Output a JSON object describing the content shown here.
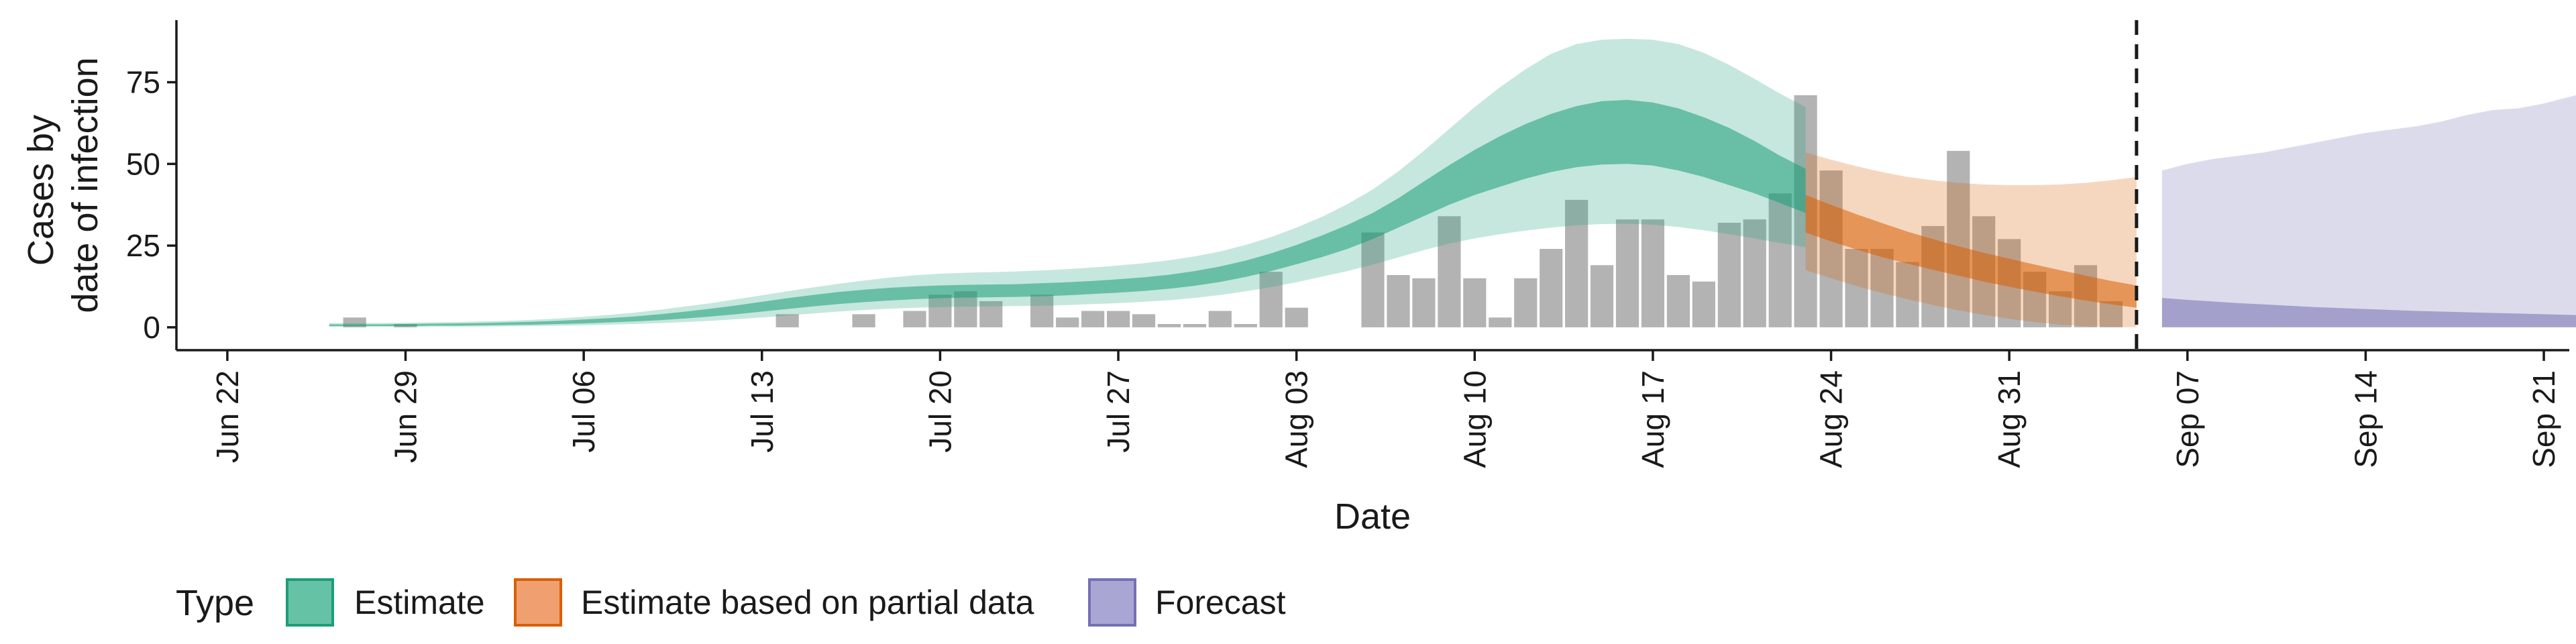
{
  "chart_data": {
    "type": "area",
    "title": "",
    "xlabel": "Date",
    "ylabel_lines": [
      "Cases by",
      "date of infection"
    ],
    "x_range": [
      "2020-06-20",
      "2020-09-22"
    ],
    "ylim": [
      -7,
      94
    ],
    "grid": false,
    "x_ticks": [
      {
        "date": "2020-06-22",
        "label": "Jun 22"
      },
      {
        "date": "2020-06-29",
        "label": "Jun 29"
      },
      {
        "date": "2020-07-06",
        "label": "Jul 06"
      },
      {
        "date": "2020-07-13",
        "label": "Jul 13"
      },
      {
        "date": "2020-07-20",
        "label": "Jul 20"
      },
      {
        "date": "2020-07-27",
        "label": "Jul 27"
      },
      {
        "date": "2020-08-03",
        "label": "Aug 03"
      },
      {
        "date": "2020-08-10",
        "label": "Aug 10"
      },
      {
        "date": "2020-08-17",
        "label": "Aug 17"
      },
      {
        "date": "2020-08-24",
        "label": "Aug 24"
      },
      {
        "date": "2020-08-31",
        "label": "Aug 31"
      },
      {
        "date": "2020-09-07",
        "label": "Sep 07"
      },
      {
        "date": "2020-09-14",
        "label": "Sep 14"
      },
      {
        "date": "2020-09-21",
        "label": "Sep 21"
      }
    ],
    "y_ticks": [
      {
        "value": 0,
        "label": "0"
      },
      {
        "value": 25,
        "label": "25"
      },
      {
        "value": 50,
        "label": "50"
      },
      {
        "value": 75,
        "label": "75"
      }
    ],
    "vline_date": "2020-09-05",
    "legend": {
      "title": "Type",
      "position": "bottom",
      "entries": [
        {
          "label": "Estimate",
          "fill": "#66c2a5",
          "stroke": "#1b9e77"
        },
        {
          "label": "Estimate based on partial data",
          "fill": "#f0a070",
          "stroke": "#d95f02"
        },
        {
          "label": "Forecast",
          "fill": "#a9a6d4",
          "stroke": "#7570b3"
        }
      ]
    },
    "observed_cases": {
      "start": "2020-06-26",
      "values": [
        0,
        3,
        0,
        1,
        0,
        0,
        0,
        0,
        0,
        0,
        0,
        0,
        0,
        0,
        0,
        0,
        0,
        0,
        4,
        0,
        0,
        4,
        0,
        5,
        10,
        11,
        8,
        0,
        10,
        3,
        5,
        5,
        4,
        1,
        1,
        5,
        1,
        17,
        6,
        0,
        0,
        29,
        16,
        15,
        34,
        15,
        3,
        15,
        24,
        39,
        19,
        33,
        33,
        16,
        14,
        32,
        33,
        41,
        71,
        48,
        24,
        24,
        20,
        31,
        54,
        34,
        27,
        17,
        11,
        19,
        8
      ]
    },
    "series": [
      {
        "name": "Estimate",
        "color": "#1b9e77",
        "start": "2020-06-26",
        "upper90": [
          1.3,
          1.3,
          1.3,
          1.4,
          1.5,
          1.6,
          1.8,
          2.0,
          2.3,
          2.7,
          3.2,
          3.8,
          4.5,
          5.4,
          6.4,
          7.4,
          8.6,
          9.8,
          11.0,
          12.2,
          13.3,
          14.3,
          15.2,
          15.9,
          16.4,
          16.7,
          16.9,
          17.1,
          17.4,
          17.8,
          18.3,
          18.9,
          19.6,
          20.5,
          21.7,
          23.2,
          25.2,
          27.6,
          30.5,
          33.8,
          37.7,
          42.2,
          47.7,
          54.0,
          60.7,
          67.4,
          73.5,
          79.0,
          83.7,
          86.7,
          88.0,
          88.3,
          88.0,
          86.7,
          84.0,
          80.3,
          76.0,
          71.5,
          67.4
        ],
        "upper50": [
          0.9,
          0.9,
          0.9,
          1.0,
          1.1,
          1.2,
          1.3,
          1.5,
          1.7,
          2.0,
          2.4,
          2.8,
          3.3,
          4.0,
          4.8,
          5.7,
          6.7,
          7.8,
          8.9,
          9.9,
          10.8,
          11.5,
          12.1,
          12.5,
          12.8,
          13.0,
          13.1,
          13.2,
          13.5,
          13.8,
          14.2,
          14.7,
          15.3,
          16.1,
          17.2,
          18.6,
          20.4,
          22.6,
          25.2,
          28.1,
          31.3,
          35.0,
          39.5,
          44.6,
          49.6,
          54.3,
          58.5,
          62.2,
          65.3,
          67.7,
          69.2,
          69.6,
          68.8,
          67.0,
          64.3,
          61.0,
          57.0,
          52.5,
          48.5
        ],
        "lower50": [
          0.4,
          0.4,
          0.4,
          0.4,
          0.5,
          0.5,
          0.6,
          0.7,
          0.8,
          1.0,
          1.2,
          1.5,
          1.8,
          2.2,
          2.7,
          3.3,
          4.0,
          4.8,
          5.6,
          6.4,
          7.1,
          7.7,
          8.2,
          8.6,
          8.9,
          9.1,
          9.2,
          9.3,
          9.5,
          9.8,
          10.2,
          10.6,
          11.1,
          11.8,
          12.7,
          13.9,
          15.4,
          17.2,
          19.3,
          21.5,
          24.0,
          27.0,
          30.5,
          34.0,
          37.5,
          40.5,
          43.0,
          45.5,
          47.5,
          49.0,
          49.8,
          50.0,
          49.5,
          48.0,
          46.0,
          43.5,
          41.0,
          38.0,
          35.0
        ],
        "lower90": [
          0.1,
          0.1,
          0.1,
          0.1,
          0.2,
          0.2,
          0.2,
          0.3,
          0.4,
          0.5,
          0.6,
          0.8,
          1.0,
          1.3,
          1.6,
          2.0,
          2.5,
          3.0,
          3.6,
          4.2,
          4.8,
          5.3,
          5.7,
          6.0,
          6.2,
          6.3,
          6.4,
          6.5,
          6.6,
          6.8,
          7.1,
          7.4,
          7.8,
          8.3,
          9.0,
          9.9,
          11.0,
          12.3,
          13.8,
          15.5,
          17.2,
          19.2,
          21.4,
          23.6,
          25.6,
          27.2,
          28.5,
          29.6,
          30.5,
          31.2,
          31.6,
          31.7,
          31.4,
          30.7,
          29.7,
          28.5,
          27.2,
          25.8,
          24.5
        ]
      },
      {
        "name": "Estimate based on partial data",
        "color": "#d95f02",
        "start": "2020-08-23",
        "upper90": [
          53.5,
          51.3,
          49.3,
          47.5,
          46.0,
          45.0,
          44.2,
          43.7,
          43.5,
          43.5,
          43.7,
          44.2,
          45.0,
          46.0
        ],
        "upper50": [
          40.5,
          37.5,
          34.6,
          31.9,
          29.3,
          27.0,
          24.8,
          22.8,
          21.0,
          19.2,
          17.5,
          15.8,
          14.2,
          12.8
        ],
        "lower50": [
          29.0,
          26.3,
          23.8,
          21.5,
          19.5,
          17.6,
          15.8,
          14.0,
          12.4,
          10.9,
          9.5,
          8.2,
          7.0,
          6.0
        ],
        "lower90": [
          17.5,
          15.0,
          12.6,
          10.5,
          8.6,
          6.8,
          5.2,
          3.8,
          2.6,
          1.6,
          0.8,
          0.3,
          0.1,
          0.0
        ]
      },
      {
        "name": "Forecast",
        "color": "#7570b3",
        "start": "2020-09-06",
        "upper90": [
          48.0,
          50.0,
          51.5,
          52.5,
          53.5,
          55.0,
          56.5,
          58.0,
          59.5,
          60.5,
          61.5,
          63.0,
          65.0,
          66.5,
          67.0,
          68.5,
          70.5,
          72.5,
          74.5,
          75.5
        ],
        "upper50": [
          9.0,
          8.4,
          7.9,
          7.4,
          7.0,
          6.6,
          6.2,
          5.9,
          5.6,
          5.3,
          5.0,
          4.8,
          4.6,
          4.4,
          4.2,
          4.0,
          3.8,
          3.6,
          3.4,
          3.2
        ],
        "lower50": [
          0,
          0,
          0,
          0,
          0,
          0,
          0,
          0,
          0,
          0,
          0,
          0,
          0,
          0,
          0,
          0,
          0,
          0,
          0,
          0
        ],
        "lower90": [
          0,
          0,
          0,
          0,
          0,
          0,
          0,
          0,
          0,
          0,
          0,
          0,
          0,
          0,
          0,
          0,
          0,
          0,
          0,
          0
        ]
      }
    ]
  }
}
